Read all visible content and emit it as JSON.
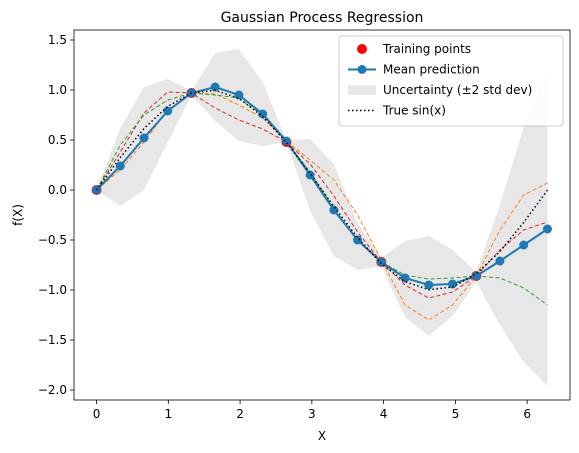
{
  "chart_data": {
    "type": "line",
    "title": "Gaussian Process Regression",
    "xlabel": "X",
    "ylabel": "f(X)",
    "xlim": [
      -0.314,
      6.597
    ],
    "ylim": [
      -2.1,
      1.6
    ],
    "xticks": [
      0,
      1,
      2,
      3,
      4,
      5,
      6
    ],
    "xtick_labels": [
      "0",
      "1",
      "2",
      "3",
      "4",
      "5",
      "6"
    ],
    "yticks": [
      -2.0,
      -1.5,
      -1.0,
      -0.5,
      0.0,
      0.5,
      1.0,
      1.5
    ],
    "ytick_labels": [
      "−2.0",
      "−1.5",
      "−1.0",
      "−0.5",
      "0.0",
      "0.5",
      "1.0",
      "1.5"
    ],
    "grid": false,
    "legend_position": "top-right",
    "x": [
      0.0,
      0.331,
      0.661,
      0.992,
      1.323,
      1.653,
      1.984,
      2.315,
      2.645,
      2.976,
      3.307,
      3.637,
      3.968,
      4.299,
      4.629,
      4.96,
      5.291,
      5.621,
      5.952,
      6.283
    ],
    "training_points": {
      "name": "Training points",
      "color": "#ff0000",
      "x": [
        0.0,
        1.323,
        2.645,
        3.968,
        5.291
      ],
      "y": [
        0.0,
        0.97,
        0.48,
        -0.72,
        -0.86
      ]
    },
    "mean_prediction": {
      "name": "Mean prediction",
      "color": "#1f77b4",
      "y": [
        0.0,
        0.24,
        0.52,
        0.79,
        0.97,
        1.03,
        0.95,
        0.76,
        0.49,
        0.15,
        -0.2,
        -0.5,
        -0.72,
        -0.88,
        -0.95,
        -0.94,
        -0.86,
        -0.71,
        -0.55,
        -0.39
      ]
    },
    "uncertainty": {
      "name": "Uncertainty (±2 std dev)",
      "color": "#d3d3d3",
      "upper": [
        0.0,
        0.62,
        1.03,
        1.11,
        0.99,
        1.37,
        1.41,
        1.08,
        0.5,
        0.51,
        0.26,
        -0.33,
        -0.68,
        -0.51,
        -0.46,
        -0.6,
        -0.82,
        -0.15,
        0.63,
        1.18
      ],
      "lower": [
        0.0,
        -0.16,
        0.0,
        0.48,
        0.95,
        0.69,
        0.49,
        0.44,
        0.48,
        -0.21,
        -0.66,
        -0.8,
        -0.76,
        -1.27,
        -1.46,
        -1.26,
        -0.92,
        -1.35,
        -1.72,
        -1.96
      ]
    },
    "true_function": {
      "name": "True sin(x)",
      "color": "#000000",
      "y": [
        0.0,
        0.325,
        0.614,
        0.837,
        0.97,
        0.997,
        0.916,
        0.736,
        0.476,
        0.165,
        -0.165,
        -0.476,
        -0.736,
        -0.916,
        -0.997,
        -0.97,
        -0.837,
        -0.614,
        -0.325,
        0.0
      ]
    },
    "samples": [
      {
        "color": "#ff7f0e",
        "y": [
          0.0,
          0.2,
          0.48,
          0.8,
          0.97,
          0.96,
          0.85,
          0.72,
          0.49,
          0.3,
          0.1,
          -0.25,
          -0.7,
          -1.15,
          -1.3,
          -1.15,
          -0.86,
          -0.4,
          -0.05,
          0.07
        ]
      },
      {
        "color": "#d62728",
        "y": [
          0.0,
          0.38,
          0.77,
          0.98,
          0.97,
          0.82,
          0.7,
          0.61,
          0.48,
          0.26,
          -0.06,
          -0.42,
          -0.72,
          -0.95,
          -1.08,
          -1.02,
          -0.86,
          -0.6,
          -0.4,
          -0.32
        ]
      },
      {
        "color": "#2ca02c",
        "y": [
          0.0,
          0.45,
          0.75,
          0.9,
          0.97,
          0.95,
          0.92,
          0.75,
          0.48,
          0.18,
          -0.18,
          -0.51,
          -0.72,
          -0.85,
          -0.89,
          -0.88,
          -0.86,
          -0.88,
          -0.98,
          -1.15
        ]
      }
    ]
  }
}
